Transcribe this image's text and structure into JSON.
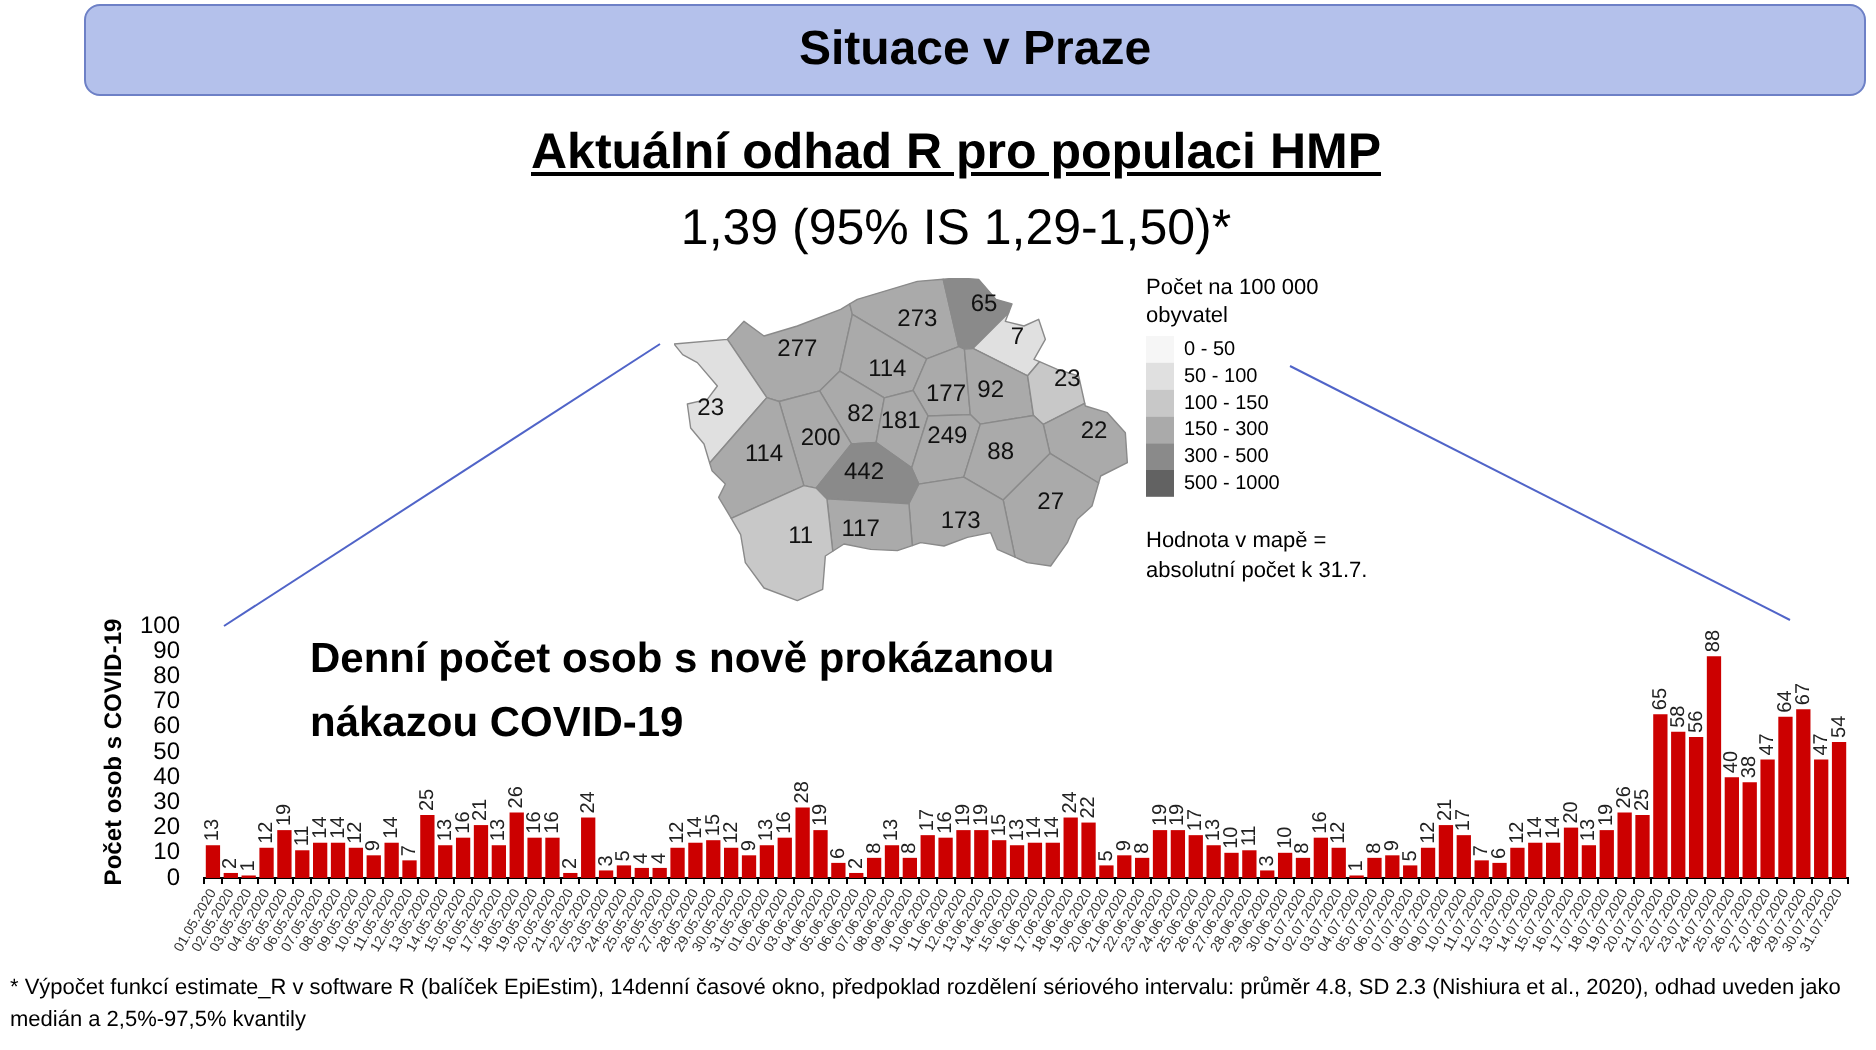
{
  "chart_data": [
    {
      "type": "other",
      "title": "Situace v Praze",
      "subtitle": "Aktuální odhad R pro populaci HMP",
      "annotations": [
        "1,39 (95% IS 1,29-1,50)*",
        "* Výpočet funkcí estimate_R v software R (balíček EpiEstim), 14denní časové okno, předpoklad rozdělení sériového intervalu: průměr 4.8, SD 2.3 (Nishiura et al., 2020), odhad uveden jako medián a 2,5%-97,5% kvantily"
      ]
    },
    {
      "type": "other",
      "legend_title": "Počet na 100 000 obyvatel",
      "legend": "right",
      "series": [
        {
          "name": "0 - 50",
          "color": "#f6f6f6"
        },
        {
          "name": "50 - 100",
          "color": "#e0e0e0"
        },
        {
          "name": "100 - 150",
          "color": "#c8c8c8"
        },
        {
          "name": "150 - 300",
          "color": "#aaaaaa"
        },
        {
          "name": "300 - 500",
          "color": "#8a8a8a"
        },
        {
          "name": "500 - 1000",
          "color": "#626262"
        }
      ],
      "annotations": [
        "277",
        "273",
        "65",
        "7",
        "114",
        "177",
        "92",
        "23",
        "23",
        "82",
        "181",
        "249",
        "200",
        "22",
        "114",
        "442",
        "88",
        "27",
        "173",
        "117",
        "11",
        "Hodnota v mapě = absolutní počet k 31.7."
      ]
    },
    {
      "type": "bar",
      "title": "Denní počet osob s nově prokázanou nákazou COVID-19",
      "ylabel": "Počet osob s COVID-19",
      "color": "#cc0000",
      "data_labels": true,
      "ylim": [
        0,
        100
      ],
      "yticks": [
        0,
        10,
        20,
        30,
        40,
        50,
        60,
        70,
        80,
        90,
        100
      ],
      "categories": [
        "01.05.2020",
        "02.05.2020",
        "03.05.2020",
        "04.05.2020",
        "05.05.2020",
        "06.05.2020",
        "07.05.2020",
        "08.05.2020",
        "09.05.2020",
        "10.05.2020",
        "11.05.2020",
        "12.05.2020",
        "13.05.2020",
        "14.05.2020",
        "15.05.2020",
        "16.05.2020",
        "17.05.2020",
        "18.05.2020",
        "19.05.2020",
        "20.05.2020",
        "21.05.2020",
        "22.05.2020",
        "23.05.2020",
        "24.05.2020",
        "25.05.2020",
        "26.05.2020",
        "27.05.2020",
        "28.05.2020",
        "29.05.2020",
        "30.05.2020",
        "31.05.2020",
        "01.06.2020",
        "02.06.2020",
        "03.06.2020",
        "04.06.2020",
        "05.06.2020",
        "06.06.2020",
        "07.06.2020",
        "08.06.2020",
        "09.06.2020",
        "10.06.2020",
        "11.06.2020",
        "12.06.2020",
        "13.06.2020",
        "14.06.2020",
        "15.06.2020",
        "16.06.2020",
        "17.06.2020",
        "18.06.2020",
        "19.06.2020",
        "20.06.2020",
        "21.06.2020",
        "22.06.2020",
        "23.06.2020",
        "24.06.2020",
        "25.06.2020",
        "26.06.2020",
        "27.06.2020",
        "28.06.2020",
        "29.06.2020",
        "30.06.2020",
        "01.07.2020",
        "02.07.2020",
        "03.07.2020",
        "04.07.2020",
        "05.07.2020",
        "06.07.2020",
        "07.07.2020",
        "08.07.2020",
        "09.07.2020",
        "10.07.2020",
        "11.07.2020",
        "12.07.2020",
        "13.07.2020",
        "14.07.2020",
        "15.07.2020",
        "16.07.2020",
        "17.07.2020",
        "18.07.2020",
        "19.07.2020",
        "20.07.2020",
        "21.07.2020",
        "22.07.2020",
        "23.07.2020",
        "24.07.2020",
        "25.07.2020",
        "26.07.2020",
        "27.07.2020",
        "28.07.2020",
        "29.07.2020",
        "30.07.2020",
        "31.07.2020"
      ],
      "values": [
        13,
        2,
        1,
        12,
        19,
        11,
        14,
        14,
        12,
        9,
        14,
        7,
        25,
        13,
        16,
        21,
        13,
        26,
        16,
        16,
        2,
        24,
        3,
        5,
        4,
        4,
        12,
        14,
        15,
        12,
        9,
        13,
        16,
        28,
        19,
        6,
        2,
        8,
        13,
        8,
        17,
        16,
        19,
        19,
        15,
        13,
        14,
        14,
        24,
        22,
        5,
        9,
        8,
        19,
        19,
        17,
        13,
        10,
        11,
        3,
        10,
        8,
        16,
        12,
        1,
        8,
        9,
        5,
        12,
        21,
        17,
        7,
        6,
        12,
        14,
        14,
        20,
        13,
        19,
        26,
        25,
        65,
        58,
        56,
        88,
        40,
        38,
        47,
        64,
        67,
        47,
        54
      ]
    }
  ]
}
